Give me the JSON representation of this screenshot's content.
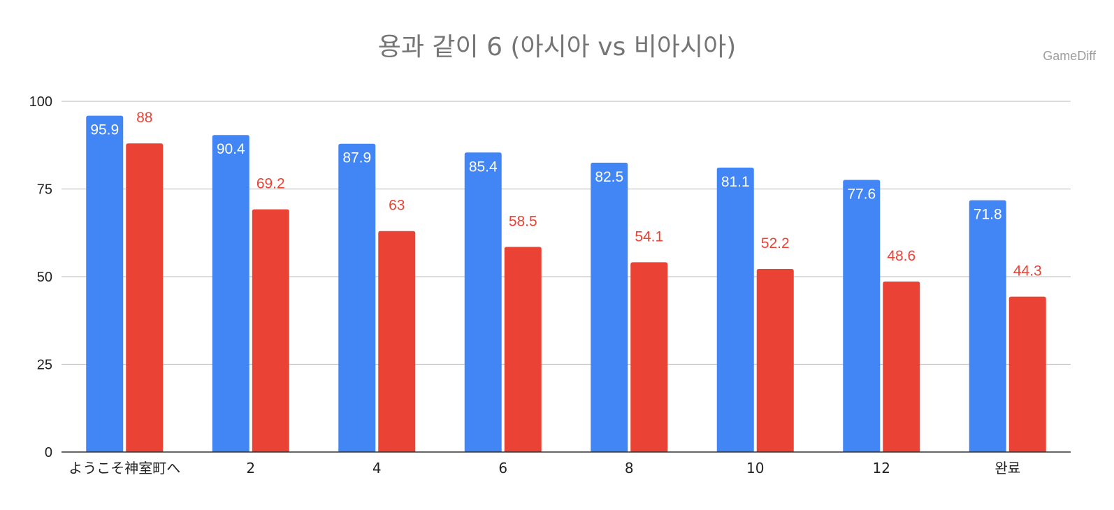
{
  "title": "용과 같이 6 (아시아 vs 비아시아)",
  "watermark": "GameDiff",
  "chart_data": {
    "type": "bar",
    "title": "용과 같이 6 (아시아 vs 비아시아)",
    "categories": [
      "ようこそ神室町へ",
      "2",
      "4",
      "6",
      "8",
      "10",
      "12",
      "완료"
    ],
    "series": [
      {
        "color": "#4285f4",
        "values": [
          95.9,
          90.4,
          87.9,
          85.4,
          82.5,
          81.1,
          77.6,
          71.8
        ],
        "label_color": "#ffffff"
      },
      {
        "color": "#ea4335",
        "values": [
          88,
          69.2,
          63,
          58.5,
          54.1,
          52.2,
          48.6,
          44.3
        ],
        "label_color": "#ea4335"
      }
    ],
    "yticks": [
      0,
      25,
      50,
      75,
      100
    ],
    "ylim": [
      0,
      100
    ],
    "grid": true,
    "xlabel": "",
    "ylabel": ""
  }
}
